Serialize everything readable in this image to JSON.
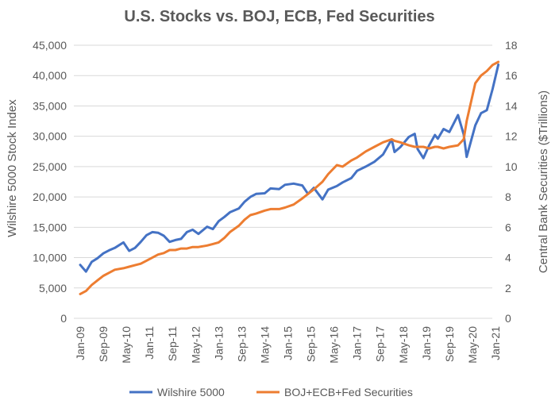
{
  "chart_data": {
    "type": "line",
    "title": "U.S. Stocks vs. BOJ, ECB, Fed Securities",
    "ylabel": "Wilshire 5000 Stock Index",
    "y2label": "Central Bank Securities ($Trillions)",
    "ylim": [
      0,
      45000
    ],
    "y2lim": [
      0,
      18
    ],
    "y_ticks": [
      "0",
      "5,000",
      "10,000",
      "15,000",
      "20,000",
      "25,000",
      "30,000",
      "35,000",
      "40,000",
      "45,000"
    ],
    "y2_ticks": [
      "0",
      "2",
      "4",
      "6",
      "8",
      "10",
      "12",
      "14",
      "16",
      "18"
    ],
    "x_ticks": [
      "Jan-09",
      "Sep-09",
      "May-10",
      "Jan-11",
      "Sep-11",
      "May-12",
      "Jan-13",
      "Sep-13",
      "May-14",
      "Jan-15",
      "Sep-15",
      "May-16",
      "Jan-17",
      "Sep-17",
      "May-18",
      "Jan-19",
      "Sep-19",
      "May-20",
      "Jan-21"
    ],
    "grid": true,
    "legend_position": "bottom",
    "series": [
      {
        "name": "Wilshire 5000",
        "axis": "left",
        "color": "#4472c4",
        "x": [
          "Jan-09",
          "Mar-09",
          "May-09",
          "Jul-09",
          "Sep-09",
          "Nov-09",
          "Jan-10",
          "Apr-10",
          "Jun-10",
          "Aug-10",
          "Oct-10",
          "Dec-10",
          "Feb-11",
          "Apr-11",
          "Jun-11",
          "Aug-11",
          "Oct-11",
          "Dec-11",
          "Feb-12",
          "Apr-12",
          "Jun-12",
          "Sep-12",
          "Nov-12",
          "Jan-13",
          "Mar-13",
          "May-13",
          "Aug-13",
          "Oct-13",
          "Dec-13",
          "Feb-14",
          "May-14",
          "Jul-14",
          "Oct-14",
          "Dec-14",
          "Mar-15",
          "Jun-15",
          "Aug-15",
          "Oct-15",
          "Jan-16",
          "Mar-16",
          "Jun-16",
          "Aug-16",
          "Nov-16",
          "Jan-17",
          "Apr-17",
          "Jul-17",
          "Oct-17",
          "Jan-18",
          "Feb-18",
          "Apr-18",
          "Jul-18",
          "Sep-18",
          "Oct-18",
          "Dec-18",
          "Feb-19",
          "Apr-19",
          "May-19",
          "Jul-19",
          "Sep-19",
          "Dec-19",
          "Feb-20",
          "Mar-20",
          "Jun-20",
          "Aug-20",
          "Oct-20",
          "Dec-20",
          "Feb-21"
        ],
        "values": [
          8800,
          7700,
          9300,
          9900,
          10700,
          11200,
          11600,
          12500,
          11100,
          11600,
          12600,
          13700,
          14200,
          14100,
          13600,
          12600,
          12900,
          13100,
          14200,
          14600,
          13900,
          15100,
          14700,
          16000,
          16700,
          17500,
          18100,
          19200,
          20000,
          20500,
          20600,
          21400,
          21300,
          22000,
          22200,
          21900,
          20500,
          21500,
          19600,
          21200,
          21800,
          22400,
          23100,
          24300,
          25000,
          25800,
          27000,
          29500,
          27400,
          28200,
          29900,
          30400,
          27900,
          26400,
          28500,
          30200,
          29600,
          31200,
          30700,
          33500,
          30300,
          26600,
          31800,
          33800,
          34300,
          37800,
          41800
        ]
      },
      {
        "name": "BOJ+ECB+Fed Securities",
        "axis": "right",
        "color": "#ed7d31",
        "x": [
          "Jan-09",
          "Mar-09",
          "May-09",
          "Jul-09",
          "Sep-09",
          "Nov-09",
          "Jan-10",
          "Apr-10",
          "Jun-10",
          "Aug-10",
          "Oct-10",
          "Dec-10",
          "Feb-11",
          "Apr-11",
          "Jun-11",
          "Aug-11",
          "Oct-11",
          "Dec-11",
          "Feb-12",
          "Apr-12",
          "Jun-12",
          "Sep-12",
          "Nov-12",
          "Jan-13",
          "Mar-13",
          "May-13",
          "Aug-13",
          "Oct-13",
          "Dec-13",
          "Feb-14",
          "May-14",
          "Jul-14",
          "Oct-14",
          "Dec-14",
          "Mar-15",
          "Jun-15",
          "Aug-15",
          "Oct-15",
          "Jan-16",
          "Mar-16",
          "Jun-16",
          "Aug-16",
          "Nov-16",
          "Jan-17",
          "Apr-17",
          "Jul-17",
          "Oct-17",
          "Jan-18",
          "Feb-18",
          "Apr-18",
          "Jul-18",
          "Sep-18",
          "Oct-18",
          "Dec-18",
          "Feb-19",
          "Apr-19",
          "May-19",
          "Jul-19",
          "Sep-19",
          "Dec-19",
          "Feb-20",
          "Mar-20",
          "Jun-20",
          "Aug-20",
          "Oct-20",
          "Dec-20",
          "Feb-21"
        ],
        "values": [
          1.6,
          1.8,
          2.2,
          2.5,
          2.8,
          3.0,
          3.2,
          3.3,
          3.4,
          3.5,
          3.6,
          3.8,
          4.0,
          4.2,
          4.3,
          4.5,
          4.5,
          4.6,
          4.6,
          4.7,
          4.7,
          4.8,
          4.9,
          5.0,
          5.3,
          5.7,
          6.1,
          6.5,
          6.8,
          6.9,
          7.1,
          7.2,
          7.2,
          7.3,
          7.5,
          7.9,
          8.2,
          8.5,
          9.0,
          9.5,
          10.1,
          10.0,
          10.4,
          10.6,
          11.0,
          11.3,
          11.6,
          11.8,
          11.7,
          11.6,
          11.4,
          11.3,
          11.3,
          11.3,
          11.2,
          11.3,
          11.3,
          11.2,
          11.3,
          11.4,
          11.8,
          13.0,
          15.5,
          16.0,
          16.3,
          16.7,
          16.9
        ]
      }
    ]
  }
}
